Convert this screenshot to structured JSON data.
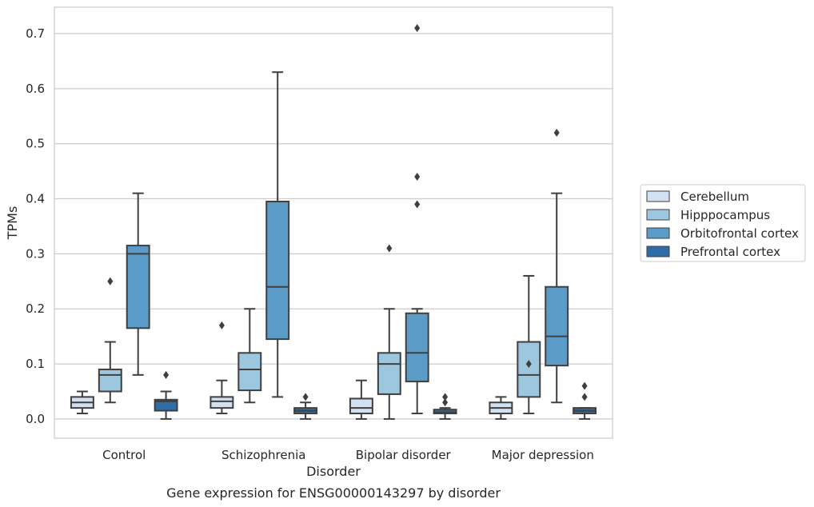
{
  "chart_data": {
    "type": "boxplot",
    "title": "Gene expression for ENSG00000143297 by disorder",
    "xlabel": "Disorder",
    "ylabel": "TPMs",
    "ylim": [
      -0.035,
      0.748
    ],
    "yticks": [
      0.0,
      0.1,
      0.2,
      0.3,
      0.4,
      0.5,
      0.6,
      0.7
    ],
    "ytick_labels": [
      "0.0",
      "0.1",
      "0.2",
      "0.3",
      "0.4",
      "0.5",
      "0.6",
      "0.7"
    ],
    "categories": [
      "Control",
      "Schizophrenia",
      "Bipolar disorder",
      "Major depression"
    ],
    "grid": "horizontal",
    "legend_position": "right",
    "series": [
      {
        "name": "Cerebellum",
        "color": "#d1e1f1",
        "boxes": [
          {
            "whislo": 0.01,
            "q1": 0.02,
            "med": 0.03,
            "q3": 0.04,
            "whishi": 0.05,
            "fliers": []
          },
          {
            "whislo": 0.01,
            "q1": 0.02,
            "med": 0.032,
            "q3": 0.04,
            "whishi": 0.07,
            "fliers": [
              0.17
            ]
          },
          {
            "whislo": 0.0,
            "q1": 0.01,
            "med": 0.02,
            "q3": 0.037,
            "whishi": 0.07,
            "fliers": []
          },
          {
            "whislo": 0.0,
            "q1": 0.01,
            "med": 0.02,
            "q3": 0.03,
            "whishi": 0.04,
            "fliers": []
          }
        ]
      },
      {
        "name": "Hipppocampus",
        "color": "#9cc7de",
        "boxes": [
          {
            "whislo": 0.03,
            "q1": 0.05,
            "med": 0.08,
            "q3": 0.09,
            "whishi": 0.14,
            "fliers": [
              0.25
            ]
          },
          {
            "whislo": 0.03,
            "q1": 0.052,
            "med": 0.09,
            "q3": 0.12,
            "whishi": 0.2,
            "fliers": []
          },
          {
            "whislo": 0.0,
            "q1": 0.045,
            "med": 0.1,
            "q3": 0.12,
            "whishi": 0.2,
            "fliers": [
              0.31
            ]
          },
          {
            "whislo": 0.01,
            "q1": 0.04,
            "med": 0.08,
            "q3": 0.14,
            "whishi": 0.26,
            "fliers": [
              0.1
            ]
          }
        ]
      },
      {
        "name": "Orbitofrontal cortex",
        "color": "#5b9bc8",
        "boxes": [
          {
            "whislo": 0.08,
            "q1": 0.165,
            "med": 0.3,
            "q3": 0.315,
            "whishi": 0.41,
            "fliers": []
          },
          {
            "whislo": 0.04,
            "q1": 0.145,
            "med": 0.24,
            "q3": 0.395,
            "whishi": 0.63,
            "fliers": []
          },
          {
            "whislo": 0.01,
            "q1": 0.068,
            "med": 0.12,
            "q3": 0.192,
            "whishi": 0.2,
            "fliers": [
              0.39,
              0.44,
              0.71
            ]
          },
          {
            "whislo": 0.03,
            "q1": 0.097,
            "med": 0.15,
            "q3": 0.24,
            "whishi": 0.41,
            "fliers": [
              0.52
            ]
          }
        ]
      },
      {
        "name": "Prefrontal cortex",
        "color": "#2e6da8",
        "boxes": [
          {
            "whislo": 0.0,
            "q1": 0.015,
            "med": 0.032,
            "q3": 0.035,
            "whishi": 0.05,
            "fliers": [
              0.08
            ]
          },
          {
            "whislo": 0.0,
            "q1": 0.01,
            "med": 0.015,
            "q3": 0.02,
            "whishi": 0.03,
            "fliers": [
              0.04
            ]
          },
          {
            "whislo": 0.0,
            "q1": 0.01,
            "med": 0.012,
            "q3": 0.017,
            "whishi": 0.02,
            "fliers": [
              0.03,
              0.04
            ]
          },
          {
            "whislo": 0.0,
            "q1": 0.01,
            "med": 0.015,
            "q3": 0.02,
            "whishi": 0.02,
            "fliers": [
              0.04,
              0.06
            ]
          }
        ]
      }
    ]
  }
}
